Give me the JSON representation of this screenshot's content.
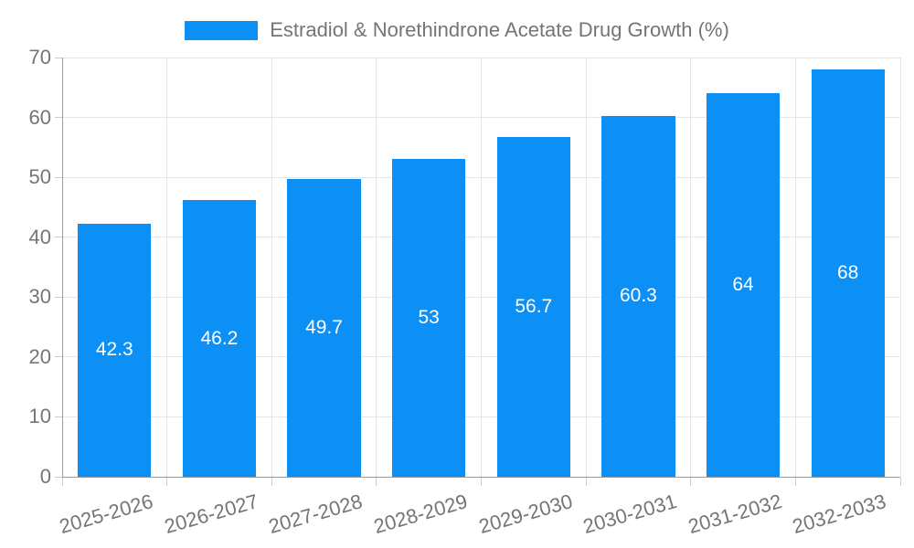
{
  "chart_data": {
    "type": "bar",
    "title": "Estradiol & Norethindrone Acetate Drug Growth (%)",
    "series": [
      {
        "name": "Estradiol & Norethindrone Acetate Drug Growth (%)",
        "values": [
          42.3,
          46.2,
          49.7,
          53,
          56.7,
          60.3,
          64,
          68
        ]
      }
    ],
    "categories": [
      "2025-2026",
      "2026-2027",
      "2027-2028",
      "2028-2029",
      "2029-2030",
      "2030-2031",
      "2031-2032",
      "2032-2033"
    ],
    "value_labels": [
      "42.3",
      "46.2",
      "49.7",
      "53",
      "56.7",
      "60.3",
      "64",
      "68"
    ],
    "xlabel": "",
    "ylabel": "",
    "ylim": [
      0,
      70
    ],
    "y_ticks": [
      0,
      10,
      20,
      30,
      40,
      50,
      60,
      70
    ],
    "grid": "horizontal and vertical light gray gridlines",
    "legend_position": "top-center",
    "bar_label_position": "inside-middle",
    "x_label_rotation_deg": -16,
    "colors": {
      "bar": "#0d90f5",
      "grid": "#e6e6e6",
      "axis_line": "#999999",
      "tick_mark": "#cccccc",
      "tick_text": "#757575",
      "value_label_text": "#ffffff",
      "background": "#ffffff"
    }
  }
}
